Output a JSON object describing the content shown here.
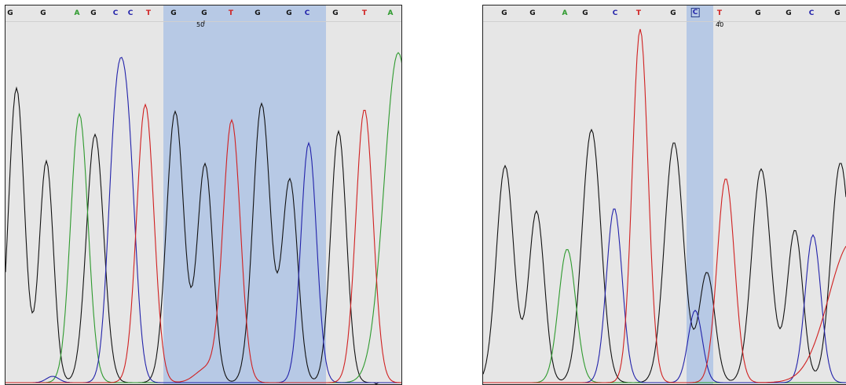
{
  "colors": {
    "A": "#2e9a2e",
    "C": "#2222aa",
    "G": "#111111",
    "T": "#d02020",
    "panel_bg": "#e6e6e6",
    "highlight": "#b7c9e5"
  },
  "left_panel": {
    "bases": [
      "G",
      "G",
      "A",
      "G",
      "C",
      "C",
      "T",
      "G",
      "G",
      "T",
      "G",
      "G",
      "C",
      "G",
      "T",
      "A"
    ],
    "position_label": "50"
  },
  "right_panel": {
    "bases": [
      "G",
      "G",
      "A",
      "G",
      "C",
      "T",
      "G",
      "C",
      "T",
      "G",
      "G",
      "C",
      "G"
    ],
    "selected_base": "C",
    "position_label": "40"
  }
}
